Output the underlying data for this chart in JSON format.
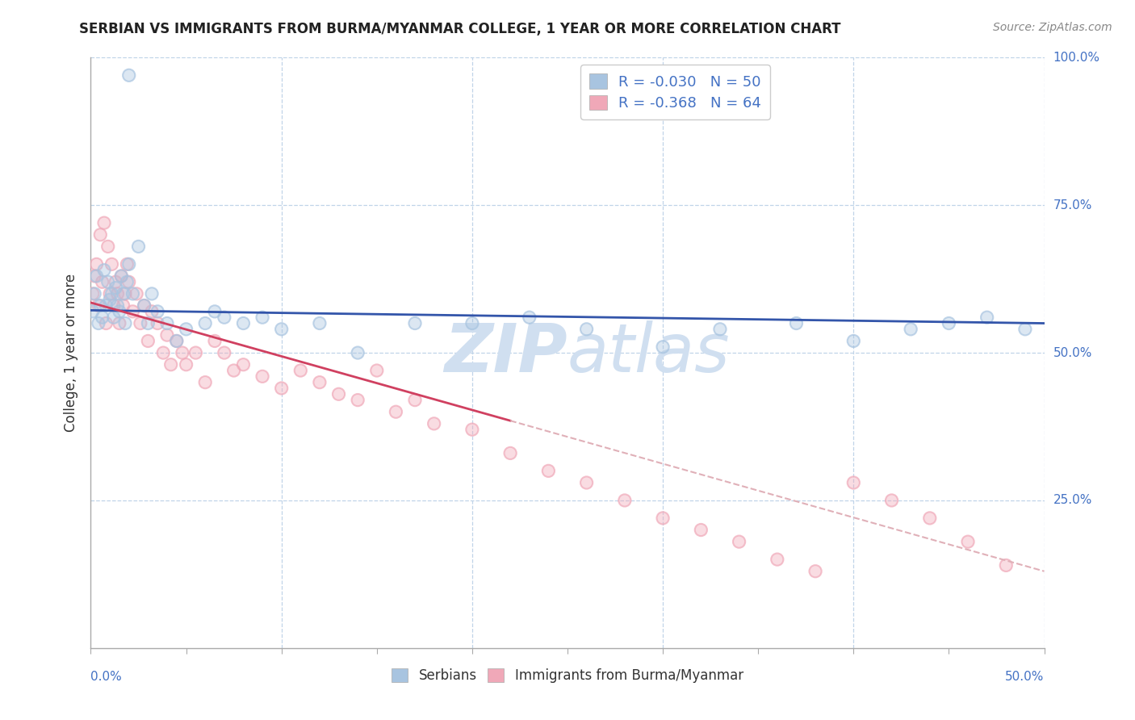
{
  "title": "SERBIAN VS IMMIGRANTS FROM BURMA/MYANMAR COLLEGE, 1 YEAR OR MORE CORRELATION CHART",
  "source": "Source: ZipAtlas.com",
  "ylabel_label": "College, 1 year or more",
  "legend_label1": "Serbians",
  "legend_label2": "Immigrants from Burma/Myanmar",
  "R1": -0.03,
  "N1": 50,
  "R2": -0.368,
  "N2": 64,
  "color_serbian": "#a8c4e0",
  "color_burma": "#f0a8b8",
  "color_line_serbian": "#3355aa",
  "color_line_burma": "#d04060",
  "color_dashed_ext": "#e0b0b8",
  "color_grid": "#c0d4e8",
  "watermark_color": "#d0dff0",
  "xlim": [
    0.0,
    0.5
  ],
  "ylim": [
    0.0,
    1.0
  ],
  "figsize": [
    14.06,
    8.92
  ],
  "dpi": 100,
  "serbian_x": [
    0.001,
    0.002,
    0.003,
    0.004,
    0.005,
    0.006,
    0.007,
    0.008,
    0.009,
    0.01,
    0.011,
    0.012,
    0.013,
    0.014,
    0.015,
    0.016,
    0.017,
    0.018,
    0.019,
    0.02,
    0.022,
    0.025,
    0.028,
    0.03,
    0.032,
    0.035,
    0.04,
    0.045,
    0.05,
    0.06,
    0.065,
    0.07,
    0.08,
    0.09,
    0.1,
    0.12,
    0.14,
    0.17,
    0.2,
    0.23,
    0.26,
    0.3,
    0.33,
    0.37,
    0.4,
    0.43,
    0.45,
    0.47,
    0.49,
    0.02
  ],
  "serbian_y": [
    0.57,
    0.6,
    0.63,
    0.55,
    0.58,
    0.56,
    0.64,
    0.58,
    0.62,
    0.59,
    0.6,
    0.56,
    0.61,
    0.58,
    0.57,
    0.63,
    0.6,
    0.55,
    0.62,
    0.65,
    0.6,
    0.68,
    0.58,
    0.55,
    0.6,
    0.57,
    0.55,
    0.52,
    0.54,
    0.55,
    0.57,
    0.56,
    0.55,
    0.56,
    0.54,
    0.55,
    0.5,
    0.55,
    0.55,
    0.56,
    0.54,
    0.51,
    0.54,
    0.55,
    0.52,
    0.54,
    0.55,
    0.56,
    0.54,
    0.97
  ],
  "burma_x": [
    0.001,
    0.002,
    0.003,
    0.004,
    0.005,
    0.006,
    0.007,
    0.008,
    0.009,
    0.01,
    0.011,
    0.012,
    0.013,
    0.014,
    0.015,
    0.016,
    0.017,
    0.018,
    0.019,
    0.02,
    0.022,
    0.024,
    0.026,
    0.028,
    0.03,
    0.032,
    0.035,
    0.038,
    0.04,
    0.042,
    0.045,
    0.048,
    0.05,
    0.055,
    0.06,
    0.065,
    0.07,
    0.075,
    0.08,
    0.09,
    0.1,
    0.11,
    0.12,
    0.13,
    0.14,
    0.15,
    0.16,
    0.17,
    0.18,
    0.2,
    0.22,
    0.24,
    0.26,
    0.28,
    0.3,
    0.32,
    0.34,
    0.36,
    0.38,
    0.4,
    0.42,
    0.44,
    0.46,
    0.48
  ],
  "burma_y": [
    0.6,
    0.63,
    0.65,
    0.58,
    0.7,
    0.62,
    0.72,
    0.55,
    0.68,
    0.6,
    0.65,
    0.58,
    0.62,
    0.6,
    0.55,
    0.63,
    0.58,
    0.6,
    0.65,
    0.62,
    0.57,
    0.6,
    0.55,
    0.58,
    0.52,
    0.57,
    0.55,
    0.5,
    0.53,
    0.48,
    0.52,
    0.5,
    0.48,
    0.5,
    0.45,
    0.52,
    0.5,
    0.47,
    0.48,
    0.46,
    0.44,
    0.47,
    0.45,
    0.43,
    0.42,
    0.47,
    0.4,
    0.42,
    0.38,
    0.37,
    0.33,
    0.3,
    0.28,
    0.25,
    0.22,
    0.2,
    0.18,
    0.15,
    0.13,
    0.28,
    0.25,
    0.22,
    0.18,
    0.14
  ],
  "line_serbian_x0": 0.0,
  "line_serbian_x1": 0.5,
  "line_serbian_y0": 0.572,
  "line_serbian_y1": 0.55,
  "line_burma_solid_x0": 0.0,
  "line_burma_solid_x1": 0.22,
  "line_burma_solid_y0": 0.585,
  "line_burma_solid_y1": 0.385,
  "line_burma_dash_x0": 0.22,
  "line_burma_dash_x1": 0.5,
  "line_burma_dash_y0": 0.385,
  "line_burma_dash_y1": 0.13
}
